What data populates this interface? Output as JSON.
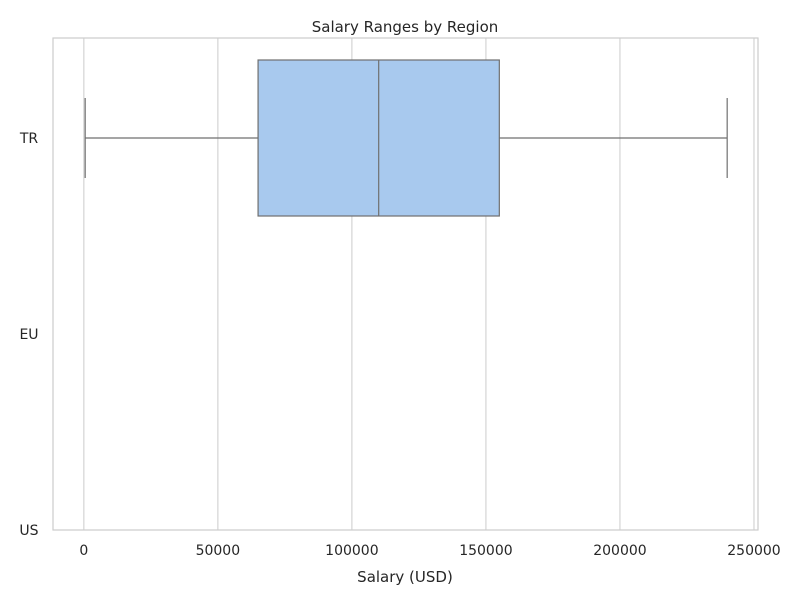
{
  "chart_data": {
    "type": "box",
    "orientation": "horizontal",
    "title": "Salary Ranges by Region",
    "xlabel": "Salary (USD)",
    "ylabel": "",
    "xlim": [
      -11500,
      251500
    ],
    "xticks": [
      0,
      50000,
      100000,
      150000,
      200000,
      250000
    ],
    "categories": [
      "TR",
      "EU",
      "US"
    ],
    "boxes": [
      {
        "category": "TR",
        "whisker_low": 500,
        "q1": 65000,
        "median": 110000,
        "q3": 155000,
        "whisker_high": 240000
      }
    ],
    "grid": "vertical",
    "colors": {
      "box_fill": "#a8c9ee",
      "box_edge": "#6f6f6f",
      "grid": "#d4d4d4",
      "spine": "#cccccc"
    }
  }
}
